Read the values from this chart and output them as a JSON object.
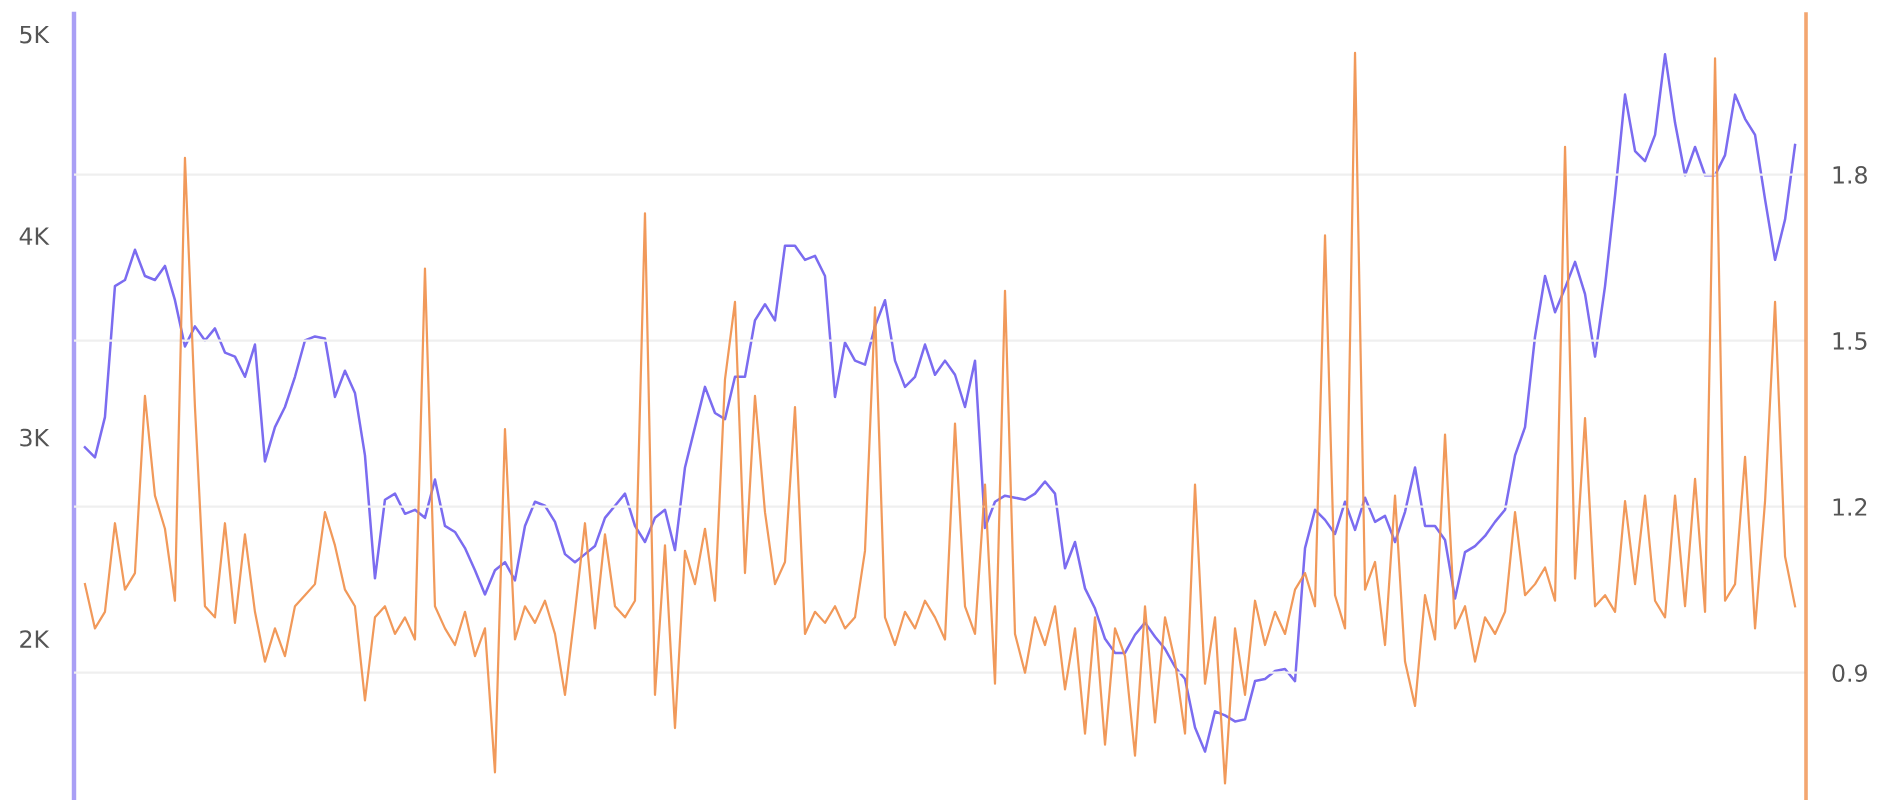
{
  "chart_data": {
    "type": "line",
    "categories": [
      null,
      null,
      null,
      null,
      null,
      null,
      null,
      null,
      null,
      null,
      null,
      null,
      null,
      null,
      null,
      null,
      null,
      null,
      null,
      null,
      null,
      null,
      null,
      null,
      null,
      null,
      null,
      null,
      null,
      null,
      null,
      null,
      null,
      null,
      null,
      null,
      null,
      null,
      null,
      null,
      null,
      null,
      null,
      null,
      null,
      null,
      null,
      null,
      null,
      null,
      null,
      null,
      null,
      null,
      null,
      null,
      null,
      null,
      null,
      null,
      null,
      null,
      null,
      null,
      null,
      null,
      null,
      null,
      null,
      null,
      null,
      null,
      null,
      null,
      null,
      null,
      null,
      null,
      null,
      null,
      null,
      null,
      null,
      null,
      null,
      null,
      null,
      null,
      null,
      null,
      null,
      null,
      null,
      null,
      null,
      null,
      null,
      null,
      null,
      null,
      null,
      null,
      null,
      null,
      null,
      null,
      null,
      null,
      null,
      null,
      null,
      null,
      null,
      null,
      null,
      null,
      null,
      null,
      null,
      null,
      null,
      null,
      null,
      null,
      null,
      null,
      null,
      null,
      null,
      null,
      null,
      null,
      null,
      null,
      null,
      null,
      null,
      null,
      null,
      null,
      null,
      null,
      null,
      null,
      null,
      null,
      null,
      null,
      null,
      null,
      null,
      null,
      null,
      null,
      null,
      null,
      null,
      null,
      null,
      null,
      null,
      null,
      null,
      null,
      null,
      null,
      null,
      null,
      null,
      null,
      null,
      null
    ],
    "series": [
      {
        "color": "#7b6cf0",
        "values": [
          2950,
          2900,
          3100,
          3750,
          3780,
          3930,
          3800,
          3780,
          3850,
          3680,
          3450,
          3550,
          3480,
          3540,
          3420,
          3400,
          3300,
          3460,
          2880,
          3050,
          3150,
          3300,
          3480,
          3500,
          3490,
          3200,
          3330,
          3220,
          2910,
          2300,
          2690,
          2720,
          2620,
          2640,
          2600,
          2790,
          2560,
          2530,
          2450,
          2340,
          2220,
          2340,
          2380,
          2290,
          2560,
          2680,
          2660,
          2580,
          2420,
          2380,
          2420,
          2460,
          2600,
          2660,
          2720,
          2560,
          2480,
          2600,
          2640,
          2440,
          2850,
          3050,
          3250,
          3120,
          3090,
          3300,
          3300,
          3580,
          3660,
          3580,
          3950,
          3950,
          3880,
          3900,
          3800,
          3200,
          3470,
          3380,
          3360,
          3550,
          3680,
          3380,
          3250,
          3300,
          3460,
          3310,
          3380,
          3310,
          3150,
          3380,
          2550,
          2680,
          2710,
          2700,
          2690,
          2720,
          2780,
          2720,
          2350,
          2480,
          2250,
          2150,
          2000,
          1930,
          1930,
          2020,
          2080,
          2010,
          1950,
          1860,
          1800,
          1560,
          1440,
          1640,
          1620,
          1590,
          1600,
          1790,
          1800,
          1840,
          1850,
          1790,
          2450,
          2640,
          2590,
          2520,
          2680,
          2540,
          2700,
          2580,
          2610,
          2480,
          2630,
          2850,
          2560,
          2560,
          2490,
          2200,
          2430,
          2460,
          2510,
          2580,
          2640,
          2910,
          3050,
          3500,
          3800,
          3620,
          3740,
          3870,
          3710,
          3400,
          3750,
          4200,
          4700,
          4420,
          4370,
          4500,
          4900,
          4560,
          4300,
          4440,
          4300,
          4300,
          4400,
          4700,
          4580,
          4500,
          4180,
          3880,
          4080,
          4450
        ]
      },
      {
        "color": "#f0904c",
        "axis": "y2",
        "values": [
          1.06,
          0.98,
          1.01,
          1.17,
          1.05,
          1.08,
          1.4,
          1.22,
          1.16,
          1.03,
          1.83,
          1.38,
          1.02,
          1.0,
          1.17,
          0.99,
          1.15,
          1.01,
          0.92,
          0.98,
          0.93,
          1.02,
          1.04,
          1.06,
          1.19,
          1.13,
          1.05,
          1.02,
          0.85,
          1.0,
          1.02,
          0.97,
          1.0,
          0.96,
          1.63,
          1.02,
          0.98,
          0.95,
          1.01,
          0.93,
          0.98,
          0.72,
          1.34,
          0.96,
          1.02,
          0.99,
          1.03,
          0.97,
          0.86,
          1.01,
          1.17,
          0.98,
          1.15,
          1.02,
          1.0,
          1.03,
          1.73,
          0.86,
          1.13,
          0.8,
          1.12,
          1.06,
          1.16,
          1.03,
          1.43,
          1.57,
          1.08,
          1.4,
          1.19,
          1.06,
          1.1,
          1.38,
          0.97,
          1.01,
          0.99,
          1.02,
          0.98,
          1.0,
          1.12,
          1.56,
          1.0,
          0.95,
          1.01,
          0.98,
          1.03,
          1.0,
          0.96,
          1.35,
          1.02,
          0.97,
          1.24,
          0.88,
          1.59,
          0.97,
          0.9,
          1.0,
          0.95,
          1.02,
          0.87,
          0.98,
          0.79,
          1.0,
          0.77,
          0.98,
          0.93,
          0.75,
          1.02,
          0.81,
          1.0,
          0.92,
          0.79,
          1.24,
          0.88,
          1.0,
          0.7,
          0.98,
          0.86,
          1.03,
          0.95,
          1.01,
          0.97,
          1.05,
          1.08,
          1.02,
          1.69,
          1.04,
          0.98,
          2.02,
          1.05,
          1.1,
          0.95,
          1.22,
          0.92,
          0.84,
          1.04,
          0.96,
          1.33,
          0.98,
          1.02,
          0.92,
          1.0,
          0.97,
          1.01,
          1.19,
          1.04,
          1.06,
          1.09,
          1.03,
          1.85,
          1.07,
          1.36,
          1.02,
          1.04,
          1.01,
          1.21,
          1.06,
          1.22,
          1.03,
          1.0,
          1.22,
          1.02,
          1.25,
          1.01,
          2.01,
          1.03,
          1.06,
          1.29,
          0.98,
          1.21,
          1.57,
          1.11,
          1.02
        ]
      }
    ],
    "ylim": [
      1200,
      5100
    ],
    "yticks": [
      {
        "value": 2000,
        "label": "2K"
      },
      {
        "value": 3000,
        "label": "3K"
      },
      {
        "value": 4000,
        "label": "4K"
      },
      {
        "value": 5000,
        "label": "5K"
      }
    ],
    "y2lim": [
      0.67,
      2.09
    ],
    "y2ticks": [
      0.9,
      1.2,
      1.5,
      1.8
    ],
    "grid": "y2"
  }
}
